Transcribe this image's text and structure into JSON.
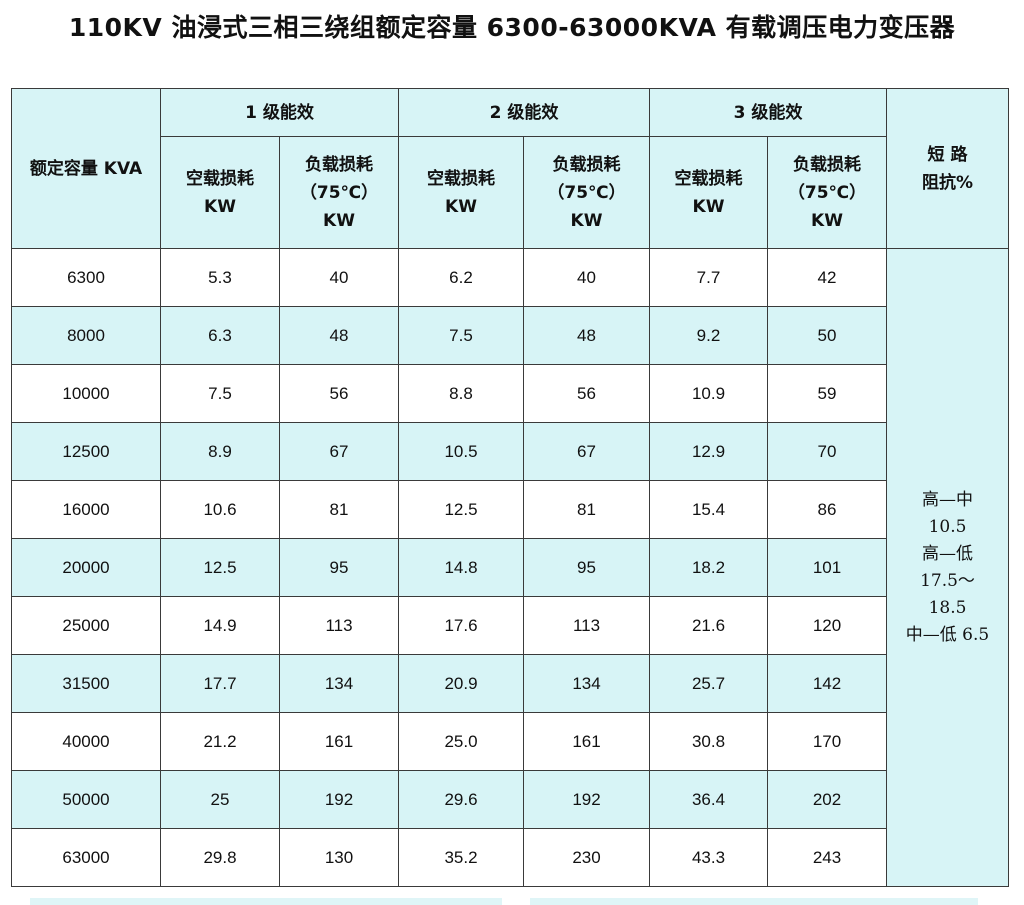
{
  "title": "110KV 油浸式三相三绕组额定容量 6300-63000KVA 有载调压电力变压器",
  "headers": {
    "capacity": "额定容量 KVA",
    "levels": [
      "1 级能效",
      "2 级能效",
      "3 级能效"
    ],
    "noload": [
      "空载损耗",
      "KW"
    ],
    "load": [
      "负载损耗",
      "（75℃）",
      "KW"
    ],
    "impedance": [
      "短 路",
      "阻抗%"
    ]
  },
  "rows": [
    [
      "6300",
      "5.3",
      "40",
      "6.2",
      "40",
      "7.7",
      "42"
    ],
    [
      "8000",
      "6.3",
      "48",
      "7.5",
      "48",
      "9.2",
      "50"
    ],
    [
      "10000",
      "7.5",
      "56",
      "8.8",
      "56",
      "10.9",
      "59"
    ],
    [
      "12500",
      "8.9",
      "67",
      "10.5",
      "67",
      "12.9",
      "70"
    ],
    [
      "16000",
      "10.6",
      "81",
      "12.5",
      "81",
      "15.4",
      "86"
    ],
    [
      "20000",
      "12.5",
      "95",
      "14.8",
      "95",
      "18.2",
      "101"
    ],
    [
      "25000",
      "14.9",
      "113",
      "17.6",
      "113",
      "21.6",
      "120"
    ],
    [
      "31500",
      "17.7",
      "134",
      "20.9",
      "134",
      "25.7",
      "142"
    ],
    [
      "40000",
      "21.2",
      "161",
      "25.0",
      "161",
      "30.8",
      "170"
    ],
    [
      "50000",
      "25",
      "192",
      "29.6",
      "192",
      "36.4",
      "202"
    ],
    [
      "63000",
      "29.8",
      "130",
      "35.2",
      "230",
      "43.3",
      "243"
    ]
  ],
  "impedance_value": [
    "高—中",
    "10.5",
    "高—低",
    "17.5～",
    "18.5",
    "中—低 6.5"
  ],
  "colors": {
    "header_bg": "#d7f4f6",
    "alt_row_bg": "#d7f4f6",
    "border": "#3a3a3a"
  }
}
